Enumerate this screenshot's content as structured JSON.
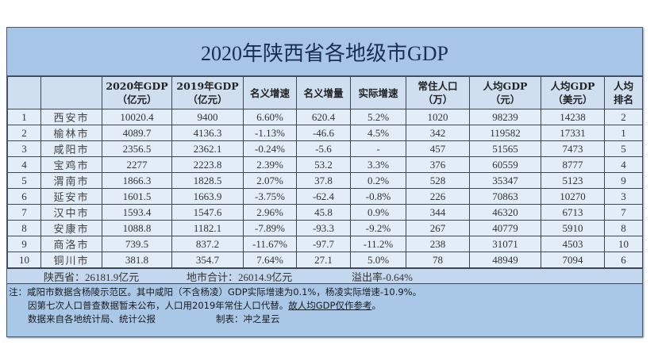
{
  "title": "2020年陕西省各地级市GDP",
  "table": {
    "headers": [
      {
        "line1": "",
        "line2": ""
      },
      {
        "line1": "",
        "line2": ""
      },
      {
        "line1": "2020年GDP",
        "line2": "（亿元）"
      },
      {
        "line1": "2019年GDP",
        "line2": "（亿元）"
      },
      {
        "line1": "名义增速",
        "line2": ""
      },
      {
        "line1": "名义增量",
        "line2": ""
      },
      {
        "line1": "实际增速",
        "line2": ""
      },
      {
        "line1": "常住人口",
        "line2": "（万）"
      },
      {
        "line1": "人均GDP",
        "line2": "（元）"
      },
      {
        "line1": "人均GDP",
        "line2": "（美元）"
      },
      {
        "line1": "人均",
        "line2": "排名"
      }
    ],
    "rows": [
      [
        "1",
        "西安市",
        "10020.4",
        "9400",
        "6.60%",
        "620.4",
        "5.2%",
        "1020",
        "98239",
        "14238",
        "2"
      ],
      [
        "2",
        "榆林市",
        "4089.7",
        "4136.3",
        "-1.13%",
        "-46.6",
        "4.5%",
        "342",
        "119582",
        "17331",
        "1"
      ],
      [
        "3",
        "咸阳市",
        "2356.5",
        "2362.1",
        "-0.24%",
        "-5.6",
        "-",
        "457",
        "51565",
        "7473",
        "5"
      ],
      [
        "4",
        "宝鸡市",
        "2277",
        "2223.8",
        "2.39%",
        "53.2",
        "3.3%",
        "376",
        "60559",
        "8777",
        "4"
      ],
      [
        "5",
        "渭南市",
        "1866.3",
        "1828.5",
        "2.07%",
        "37.8",
        "0.2%",
        "528",
        "35347",
        "5123",
        "9"
      ],
      [
        "6",
        "延安市",
        "1601.5",
        "1663.9",
        "-3.75%",
        "-62.4",
        "-0.8%",
        "226",
        "70863",
        "10270",
        "3"
      ],
      [
        "7",
        "汉中市",
        "1593.4",
        "1547.6",
        "2.96%",
        "45.8",
        "0.9%",
        "344",
        "46320",
        "6713",
        "7"
      ],
      [
        "8",
        "安康市",
        "1088.8",
        "1182.1",
        "-7.89%",
        "-93.3",
        "-9.2%",
        "267",
        "40779",
        "5910",
        "8"
      ],
      [
        "9",
        "商洛市",
        "739.5",
        "837.2",
        "-11.67%",
        "-97.7",
        "-11.2%",
        "238",
        "31071",
        "4503",
        "10"
      ],
      [
        "10",
        "铜川市",
        "381.8",
        "354.7",
        "7.64%",
        "27.1",
        "5.0%",
        "78",
        "48949",
        "7094",
        "6"
      ]
    ]
  },
  "summary": {
    "province": "陕西省：26181.9亿元",
    "city_total": "地市合计：26014.9亿元",
    "overflow": "溢出率-0.64%"
  },
  "notes": {
    "line1": "注：咸阳市数据含杨陵示范区。其中咸阳（不含杨凌）GDP实际增速为0.1%，杨凌实际增速-10.9%。",
    "line2_a": "因第七次人口普查数据暂未公布，人口用2019年常住人口代替。",
    "line2_b": "故人均GDP仅作参考",
    "line2_c": "。",
    "line3_source": "数据来自各地统计局、统计公报",
    "line3_maker": "制表：冲之星云"
  },
  "colors": {
    "title_bg": "#a7c6e7",
    "header_bg": "#cfdff0",
    "cell_bg": "#e3edf8",
    "summary_bg": "#c3d8ef",
    "notes_bg": "#a9c8e8",
    "border": "#3d4756"
  }
}
